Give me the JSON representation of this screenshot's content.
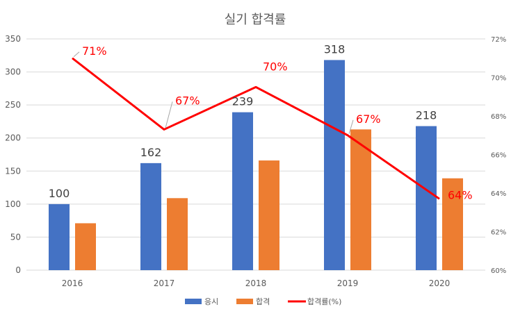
{
  "chart_data": {
    "type": "bar",
    "title": "실기 합격률",
    "categories": [
      "2016",
      "2017",
      "2018",
      "2019",
      "2020"
    ],
    "series": [
      {
        "name": "응시",
        "type": "bar",
        "axis": "left",
        "color": "#4472C4",
        "values": [
          100,
          162,
          239,
          318,
          218
        ],
        "data_labels": [
          "100",
          "162",
          "239",
          "318",
          "218"
        ]
      },
      {
        "name": "합격",
        "type": "bar",
        "axis": "left",
        "color": "#ED7D31",
        "values": [
          71,
          109,
          166,
          213,
          139
        ]
      },
      {
        "name": "합격률(%)",
        "type": "line",
        "axis": "right",
        "color": "#FF0000",
        "values": [
          71,
          67.3,
          69.5,
          67,
          63.7
        ],
        "data_labels": [
          "71%",
          "67%",
          "70%",
          "67%",
          "64%"
        ]
      }
    ],
    "y_left": {
      "min": 0,
      "max": 350,
      "ticks": [
        "0",
        "50",
        "100",
        "150",
        "200",
        "250",
        "300",
        "350"
      ]
    },
    "y_right": {
      "min": 60,
      "max": 72,
      "ticks": [
        "60%",
        "62%",
        "64%",
        "66%",
        "68%",
        "70%",
        "72%"
      ]
    },
    "grid": true,
    "legend_position": "bottom"
  }
}
